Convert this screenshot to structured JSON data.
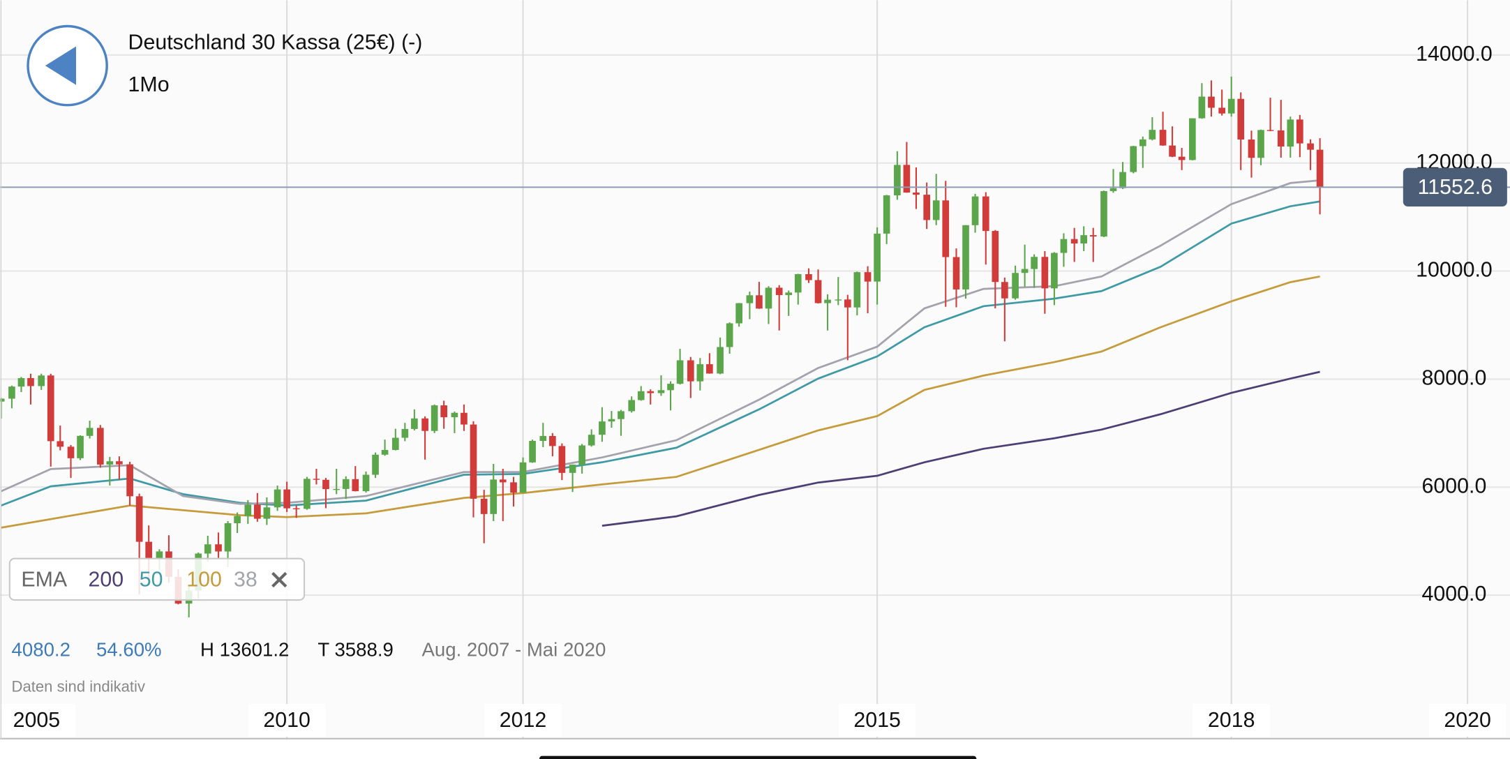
{
  "chart_data": {
    "type": "candlestick",
    "title": "Deutschland 30 Kassa (25€) (-)",
    "subtitle": "1Mo",
    "x": [
      2007.58,
      2007.67,
      2007.75,
      2007.83,
      2007.92,
      2008,
      2008.08,
      2008.17,
      2008.25,
      2008.33,
      2008.42,
      2008.5,
      2008.58,
      2008.67,
      2008.75,
      2008.83,
      2008.92,
      2009,
      2009.08,
      2009.17,
      2009.25,
      2009.33,
      2009.42,
      2009.5,
      2009.58,
      2009.67,
      2009.75,
      2009.83,
      2009.92,
      2010,
      2010.08,
      2010.17,
      2010.25,
      2010.33,
      2010.42,
      2010.5,
      2010.58,
      2010.67,
      2010.75,
      2010.83,
      2010.92,
      2011,
      2011.08,
      2011.17,
      2011.25,
      2011.33,
      2011.42,
      2011.5,
      2011.58,
      2011.67,
      2011.75,
      2011.83,
      2011.92,
      2012,
      2012.08,
      2012.17,
      2012.25,
      2012.33,
      2012.42,
      2012.5,
      2012.58,
      2012.67,
      2012.75,
      2012.83,
      2012.92,
      2013,
      2013.08,
      2013.17,
      2013.25,
      2013.33,
      2013.42,
      2013.5,
      2013.58,
      2013.67,
      2013.75,
      2013.83,
      2013.92,
      2014,
      2014.08,
      2014.17,
      2014.25,
      2014.33,
      2014.42,
      2014.5,
      2014.58,
      2014.67,
      2014.75,
      2014.83,
      2014.92,
      2015,
      2015.08,
      2015.17,
      2015.25,
      2015.33,
      2015.42,
      2015.5,
      2015.58,
      2015.67,
      2015.75,
      2015.83,
      2015.92,
      2016,
      2016.08,
      2016.17,
      2016.25,
      2016.33,
      2016.42,
      2016.5,
      2016.58,
      2016.67,
      2016.75,
      2016.83,
      2016.92,
      2017,
      2017.08,
      2017.17,
      2017.25,
      2017.33,
      2017.42,
      2017.5,
      2017.58,
      2017.67,
      2017.75,
      2017.83,
      2017.92,
      2018,
      2018.08,
      2018.17,
      2018.25,
      2018.33,
      2018.42,
      2018.5,
      2018.58,
      2018.67,
      2018.75
    ],
    "open": [
      7584,
      7638,
      7862,
      8019,
      7871,
      8067,
      6851,
      6748,
      6535,
      6949,
      7097,
      6418,
      6479,
      6422,
      5831,
      4988,
      4669,
      4810,
      4338,
      3844,
      4085,
      4770,
      4941,
      4809,
      5332,
      5465,
      5675,
      5415,
      5625,
      5957,
      5608,
      5598,
      6154,
      6136,
      5964,
      5966,
      6148,
      5925,
      6229,
      6601,
      6688,
      6914,
      7077,
      7272,
      7041,
      7514,
      7294,
      7376,
      7159,
      5785,
      5502,
      6141,
      6089,
      5898,
      6458,
      6856,
      6947,
      6761,
      6264,
      6416,
      6772,
      6970,
      7216,
      7260,
      7406,
      7612,
      7776,
      7741,
      7795,
      7914,
      8348,
      7959,
      8276,
      8103,
      8594,
      9033,
      9406,
      9552,
      9306,
      9692,
      9556,
      9603,
      9943,
      9833,
      9407,
      9470,
      9474,
      9327,
      9980,
      9806,
      10694,
      11402,
      11966,
      11454,
      11414,
      10945,
      11309,
      10259,
      9660,
      10850,
      11382,
      10743,
      9798,
      9495,
      9966,
      10039,
      10263,
      9680,
      10337,
      10593,
      10511,
      10665,
      10640,
      11481,
      11535,
      11834,
      12313,
      12438,
      12615,
      12325,
      12118,
      12056,
      12829,
      13230,
      13024,
      12918,
      13189,
      12436,
      12097,
      12612,
      12605,
      12306,
      12806,
      12364,
      12247
    ],
    "high": [
      7650,
      7880,
      8040,
      8100,
      8100,
      8100,
      7140,
      6780,
      6960,
      7230,
      7150,
      6560,
      6570,
      6470,
      5880,
      5290,
      4850,
      5110,
      4480,
      4190,
      4790,
      5100,
      5160,
      5370,
      5530,
      5760,
      5890,
      5810,
      6030,
      6100,
      5660,
      6190,
      6340,
      6170,
      6340,
      6200,
      6390,
      6290,
      6640,
      6880,
      7080,
      7190,
      7440,
      7310,
      7530,
      7600,
      7400,
      7530,
      7220,
      5950,
      6430,
      6340,
      6190,
      6550,
      6880,
      7190,
      7000,
      6810,
      6420,
      6800,
      7070,
      7480,
      7410,
      7430,
      7680,
      7870,
      7810,
      8070,
      7960,
      8560,
      8410,
      8390,
      8480,
      8770,
      9050,
      9410,
      9620,
      9800,
      9720,
      9740,
      9640,
      9950,
      10050,
      10030,
      9570,
      9890,
      9560,
      9990,
      10090,
      10810,
      11410,
      12220,
      12390,
      11920,
      11640,
      11800,
      11670,
      10420,
      10850,
      11430,
      11460,
      10760,
      9880,
      10100,
      10490,
      10310,
      10370,
      10350,
      10700,
      10800,
      10830,
      10800,
      11490,
      11890,
      12020,
      12320,
      12490,
      12850,
      12950,
      12680,
      12280,
      12830,
      13480,
      13530,
      13360,
      13601.2,
      13310,
      12600,
      12620,
      13210,
      13170,
      12860,
      12890,
      12440,
      12460
    ],
    "low": [
      7270,
      7460,
      7760,
      7530,
      7800,
      6380,
      6680,
      6170,
      6500,
      6900,
      6360,
      6030,
      6140,
      5660,
      4010,
      4300,
      4470,
      4230,
      3830,
      3588.9,
      3930,
      4620,
      4690,
      4520,
      5150,
      5320,
      5360,
      5300,
      5560,
      5540,
      5430,
      5580,
      6050,
      5610,
      5870,
      5780,
      5920,
      5900,
      6170,
      6580,
      6680,
      6850,
      7050,
      6510,
      7000,
      7080,
      7000,
      7040,
      5440,
      4960,
      5370,
      5370,
      5640,
      5890,
      6450,
      6740,
      6570,
      6130,
      5910,
      6250,
      6750,
      6840,
      7100,
      6950,
      7380,
      7600,
      7530,
      7690,
      7420,
      7900,
      7650,
      7790,
      8100,
      8090,
      8470,
      8970,
      9110,
      9300,
      9020,
      8900,
      9170,
      9380,
      9780,
      9400,
      8900,
      9370,
      8350,
      9180,
      9220,
      9380,
      10500,
      11320,
      11450,
      11150,
      10780,
      10850,
      9340,
      9330,
      9490,
      10710,
      10120,
      9310,
      8700,
      9470,
      9710,
      9690,
      9210,
      9370,
      10080,
      10170,
      10370,
      10170,
      10630,
      11450,
      11520,
      11810,
      11910,
      12420,
      12320,
      12110,
      11870,
      12050,
      12820,
      12860,
      12880,
      12860,
      11870,
      11730,
      11960,
      12590,
      12100,
      12100,
      12110,
      11870,
      11050
    ],
    "close": [
      7638,
      7862,
      8019,
      7871,
      8067,
      6851,
      6748,
      6535,
      6949,
      7097,
      6418,
      6479,
      6422,
      5831,
      4988,
      4669,
      4810,
      4338,
      3844,
      4085,
      4770,
      4941,
      4809,
      5332,
      5465,
      5675,
      5415,
      5625,
      5957,
      5608,
      5598,
      6154,
      6136,
      5964,
      5966,
      6148,
      5925,
      6229,
      6601,
      6688,
      6914,
      7077,
      7272,
      7041,
      7514,
      7294,
      7376,
      7159,
      5785,
      5502,
      6141,
      6089,
      5898,
      6458,
      6856,
      6947,
      6761,
      6264,
      6416,
      6772,
      6970,
      7216,
      7260,
      7406,
      7612,
      7776,
      7741,
      7795,
      7914,
      8348,
      7959,
      8276,
      8103,
      8594,
      9033,
      9406,
      9552,
      9306,
      9692,
      9556,
      9603,
      9943,
      9833,
      9407,
      9470,
      9474,
      9327,
      9980,
      9806,
      10694,
      11402,
      11966,
      11454,
      11414,
      10945,
      11309,
      10259,
      9660,
      10850,
      11382,
      10743,
      9798,
      9495,
      9966,
      10039,
      10263,
      9680,
      10337,
      10593,
      10511,
      10665,
      10640,
      11481,
      11535,
      11834,
      12313,
      12438,
      12615,
      12325,
      12118,
      12056,
      12829,
      13230,
      13024,
      12918,
      13189,
      12436,
      12097,
      12612,
      12605,
      12306,
      12806,
      12364,
      12247,
      11552.6
    ],
    "up_color": "#5ba64b",
    "down_color": "#d13b3a",
    "legend_title": "EMA",
    "series": [
      {
        "name": "200",
        "color": "#4d3f75",
        "x": [
          2012.67,
          2013.3,
          2014,
          2014.5,
          2015,
          2015.4,
          2015.9,
          2016.5,
          2016.9,
          2017.4,
          2018,
          2018.5,
          2018.75
        ],
        "values": [
          5285,
          5460,
          5855,
          6085,
          6210,
          6460,
          6710,
          6905,
          7065,
          7350,
          7745,
          8010,
          8135
        ]
      },
      {
        "name": "50",
        "color": "#3f9aa6",
        "x": [
          2007.58,
          2008,
          2008.67,
          2009.12,
          2009.6,
          2010,
          2010.67,
          2011.5,
          2012,
          2012.67,
          2013.3,
          2014,
          2014.5,
          2015,
          2015.4,
          2015.9,
          2016.5,
          2016.9,
          2017.4,
          2018,
          2018.5,
          2018.75
        ],
        "values": [
          5660,
          6015,
          6160,
          5870,
          5710,
          5660,
          5750,
          6230,
          6245,
          6460,
          6730,
          7440,
          8010,
          8420,
          8960,
          9350,
          9490,
          9630,
          10080,
          10880,
          11200,
          11290
        ]
      },
      {
        "name": "100",
        "color": "#c59b3b",
        "x": [
          2007.58,
          2008.67,
          2009.6,
          2010,
          2010.67,
          2011.5,
          2012,
          2012.67,
          2013.3,
          2014,
          2014.5,
          2015,
          2015.4,
          2015.9,
          2016.5,
          2016.9,
          2017.4,
          2018,
          2018.5,
          2018.75
        ],
        "values": [
          5250,
          5660,
          5480,
          5445,
          5515,
          5800,
          5890,
          6050,
          6190,
          6690,
          7050,
          7315,
          7800,
          8065,
          8315,
          8510,
          8960,
          9440,
          9795,
          9900
        ]
      },
      {
        "name": "38",
        "color": "#a3a3ad",
        "x": [
          2007.58,
          2008,
          2008.67,
          2009.12,
          2009.6,
          2010,
          2010.67,
          2011.5,
          2012,
          2012.67,
          2013.3,
          2014,
          2014.5,
          2015,
          2015.4,
          2015.9,
          2016.5,
          2016.9,
          2017.4,
          2018,
          2018.5,
          2018.75
        ],
        "values": [
          5925,
          6335,
          6405,
          5835,
          5690,
          5710,
          5835,
          6280,
          6280,
          6550,
          6870,
          7620,
          8205,
          8600,
          9310,
          9670,
          9720,
          9900,
          10470,
          11240,
          11630,
          11680
        ]
      }
    ],
    "last_price": 11552.6,
    "xlim": [
      2007.57,
      2020.36
    ],
    "xticks": [
      2005,
      2010,
      2012,
      2015,
      2018,
      2020
    ],
    "ylim": [
      1326,
      15016
    ],
    "yticks": [
      {
        "value": 4000,
        "label": "4000.0"
      },
      {
        "value": 6000,
        "label": "6000.0"
      },
      {
        "value": 8000,
        "label": "8000.0"
      },
      {
        "value": 10000,
        "label": "10000.0"
      },
      {
        "value": 12000,
        "label": "12000.0"
      },
      {
        "value": 14000,
        "label": "14000.0"
      }
    ],
    "grid": true,
    "stats": [
      "4080.2",
      "54.60%",
      "H 13601.2",
      "T 3588.9",
      "Aug. 2007 - Mai 2020"
    ],
    "note": "Daten sind indikativ"
  }
}
